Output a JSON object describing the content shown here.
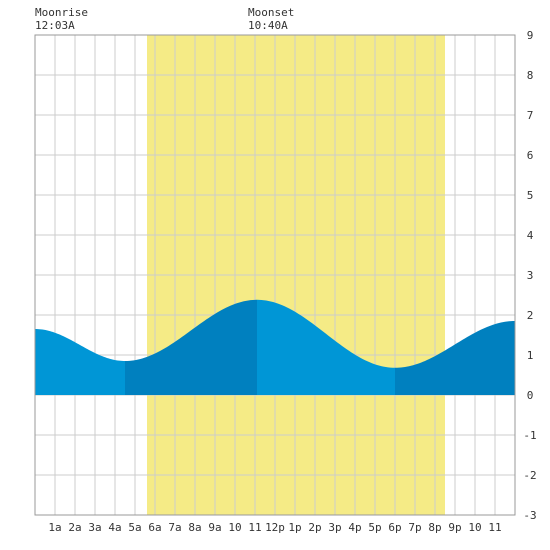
{
  "moon": {
    "rise_label": "Moonrise",
    "rise_time": "12:03A",
    "set_label": "Moonset",
    "set_time": "10:40A"
  },
  "chart_data": {
    "type": "area",
    "ylim": [
      -3,
      9
    ],
    "y_ticks": [
      "9",
      "8",
      "7",
      "6",
      "5",
      "4",
      "3",
      "2",
      "1",
      "0",
      "-1",
      "-2",
      "-3"
    ],
    "xlim": [
      0,
      24
    ],
    "x_ticks": [
      {
        "hour": 1,
        "label": "1a"
      },
      {
        "hour": 2,
        "label": "2a"
      },
      {
        "hour": 3,
        "label": "3a"
      },
      {
        "hour": 4,
        "label": "4a"
      },
      {
        "hour": 5,
        "label": "5a"
      },
      {
        "hour": 6,
        "label": "6a"
      },
      {
        "hour": 7,
        "label": "7a"
      },
      {
        "hour": 8,
        "label": "8a"
      },
      {
        "hour": 9,
        "label": "9a"
      },
      {
        "hour": 10,
        "label": "10"
      },
      {
        "hour": 11,
        "label": "11"
      },
      {
        "hour": 12,
        "label": "12p"
      },
      {
        "hour": 13,
        "label": "1p"
      },
      {
        "hour": 14,
        "label": "2p"
      },
      {
        "hour": 15,
        "label": "3p"
      },
      {
        "hour": 16,
        "label": "4p"
      },
      {
        "hour": 17,
        "label": "5p"
      },
      {
        "hour": 18,
        "label": "6p"
      },
      {
        "hour": 19,
        "label": "7p"
      },
      {
        "hour": 20,
        "label": "8p"
      },
      {
        "hour": 21,
        "label": "9p"
      },
      {
        "hour": 22,
        "label": "10"
      },
      {
        "hour": 23,
        "label": "11"
      }
    ],
    "grid": true,
    "daylight": {
      "start_hour": 5.6,
      "end_hour": 20.5
    },
    "moonrise_hour": 0.05,
    "moonset_hour": 10.67,
    "extrema": [
      {
        "hour": 0.0,
        "height": 1.65
      },
      {
        "hour": 4.5,
        "height": 0.85
      },
      {
        "hour": 11.1,
        "height": 2.38
      },
      {
        "hour": 18.0,
        "height": 0.68
      },
      {
        "hour": 24.0,
        "height": 1.85
      }
    ],
    "segment_boundaries": [
      4.5,
      11.1,
      18.0
    ],
    "colors": {
      "background": "#ffffff",
      "grid": "#cccccc",
      "daylight": "#f5eb86",
      "tide_falling": "#0096d6",
      "tide_rising": "#0080bf",
      "text": "#333333"
    }
  }
}
